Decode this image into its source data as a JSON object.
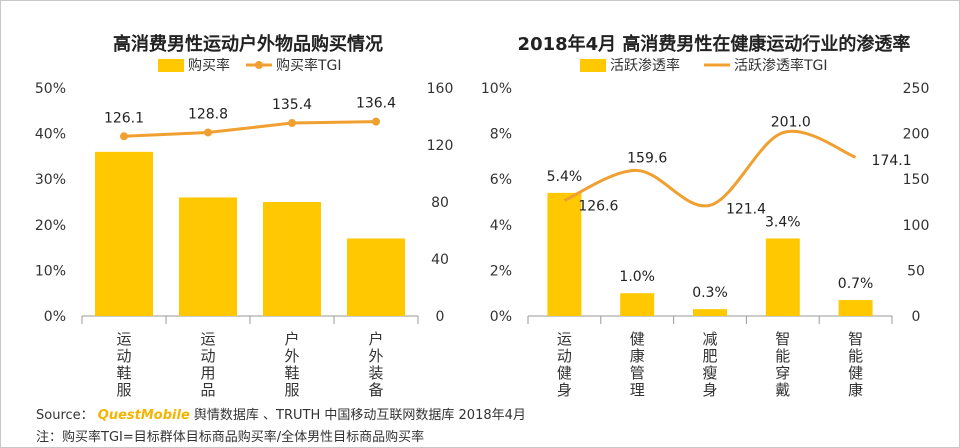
{
  "chart_data": [
    {
      "type": "bar",
      "title": "高消费男性运动户外物品购买情况",
      "categories": [
        "运动鞋服",
        "运动用品",
        "户外鞋服",
        "户外装备"
      ],
      "series": [
        {
          "name": "购买率",
          "type": "bar",
          "axis": "left",
          "values": [
            36,
            26,
            25,
            17
          ],
          "color": "#ffc800"
        },
        {
          "name": "购买率TGI",
          "type": "line",
          "axis": "right",
          "values": [
            126.1,
            128.8,
            135.4,
            136.4
          ],
          "color": "#f0a030"
        }
      ],
      "ylim_left": [
        0,
        50
      ],
      "yticks_left": [
        "0%",
        "10%",
        "20%",
        "30%",
        "40%",
        "50%"
      ],
      "ylim_right": [
        0,
        160
      ],
      "yticks_right": [
        "0",
        "40",
        "80",
        "120",
        "160"
      ],
      "line_labels": [
        "126.1",
        "128.8",
        "135.4",
        "136.4"
      ],
      "bar_labels": [],
      "legend": "top"
    },
    {
      "type": "bar",
      "title": "2018年4月 高消费男性在健康运动行业的渗透率",
      "categories": [
        "运动健身",
        "健康管理",
        "减肥瘦身",
        "智能穿戴",
        "智能健康"
      ],
      "series": [
        {
          "name": "活跃渗透率",
          "type": "bar",
          "axis": "left",
          "values": [
            5.4,
            1.0,
            0.3,
            3.4,
            0.7
          ],
          "color": "#ffc800"
        },
        {
          "name": "活跃渗透率TGI",
          "type": "line",
          "axis": "right",
          "values": [
            126.6,
            159.6,
            121.4,
            201.0,
            174.1
          ],
          "color": "#f0a030"
        }
      ],
      "ylim_left": [
        0,
        10
      ],
      "yticks_left": [
        "0%",
        "2%",
        "4%",
        "6%",
        "8%",
        "10%"
      ],
      "ylim_right": [
        0,
        250
      ],
      "yticks_right": [
        "0",
        "50",
        "100",
        "150",
        "200",
        "250"
      ],
      "line_labels": [
        "126.6",
        "159.6",
        "121.4",
        "201.0",
        "174.1"
      ],
      "bar_labels": [
        "5.4%",
        "1.0%",
        "0.3%",
        "3.4%",
        "0.7%"
      ],
      "legend": "top"
    }
  ],
  "footer": {
    "source_prefix": "Source：",
    "source_brand": "QuestMobile",
    "source_rest": "舆情数据库 、TRUTH 中国移动互联网数据库 2018年4月",
    "note": "注：购买率TGI=目标群体目标商品购买率/全体男性目标商品购买率"
  }
}
